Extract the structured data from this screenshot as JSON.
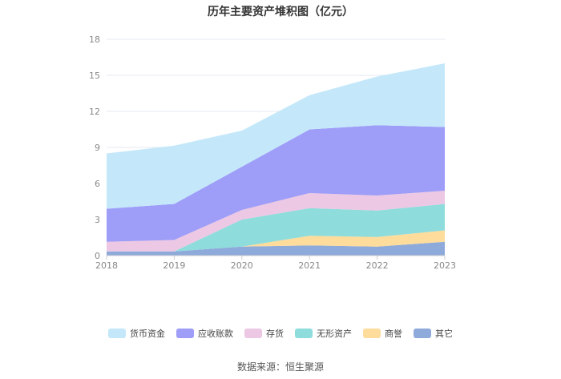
{
  "chart_data": {
    "type": "area",
    "stacked": true,
    "title": "历年主要资产堆积图（亿元）",
    "categories": [
      "2018",
      "2019",
      "2020",
      "2021",
      "2022",
      "2023"
    ],
    "ylim": [
      0,
      18
    ],
    "yticks": [
      0,
      3,
      6,
      9,
      12,
      15,
      18
    ],
    "grid": true,
    "legend_position": "bottom",
    "series": [
      {
        "name": "其它",
        "color": "#8eaadb",
        "values": [
          0.35,
          0.35,
          0.75,
          0.85,
          0.75,
          1.15
        ]
      },
      {
        "name": "商誉",
        "color": "#fddc9c",
        "values": [
          0.0,
          0.0,
          0.0,
          0.8,
          0.8,
          0.95
        ]
      },
      {
        "name": "无形资产",
        "color": "#8edcdc",
        "values": [
          0.0,
          0.0,
          2.25,
          2.3,
          2.2,
          2.2
        ]
      },
      {
        "name": "存货",
        "color": "#ecc8e4",
        "values": [
          0.8,
          0.95,
          0.8,
          1.25,
          1.25,
          1.1
        ]
      },
      {
        "name": "应收账款",
        "color": "#9e9ef8",
        "values": [
          2.75,
          3.0,
          3.6,
          5.3,
          5.85,
          5.3
        ]
      },
      {
        "name": "货币资金",
        "color": "#c4e8fa",
        "values": [
          4.6,
          4.85,
          3.0,
          2.85,
          4.05,
          5.3
        ]
      }
    ]
  },
  "legend_order": [
    "货币资金",
    "应收账款",
    "存货",
    "无形资产",
    "商誉",
    "其它"
  ],
  "source_text": "数据来源：恒生聚源"
}
